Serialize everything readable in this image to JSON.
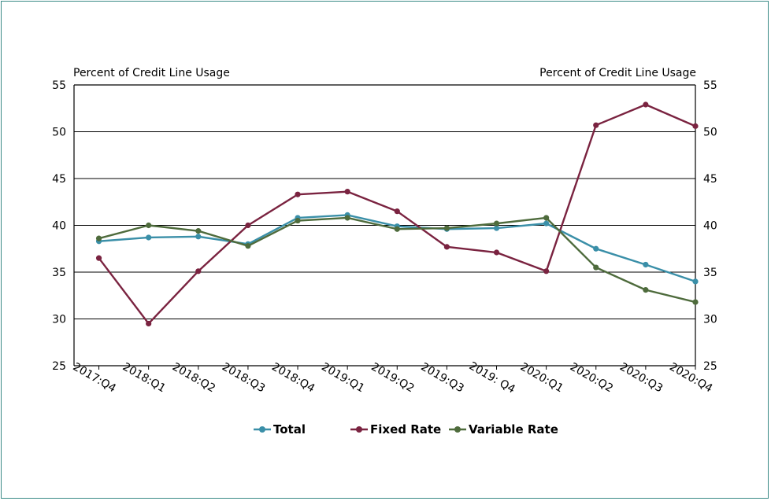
{
  "chart_data": {
    "type": "line",
    "ylabel_left": "Percent of Credit Line Usage",
    "ylabel_right": "Percent of Credit Line Usage",
    "ylim": [
      25,
      55
    ],
    "yticks": [
      25,
      30,
      35,
      40,
      45,
      50,
      55
    ],
    "grid": true,
    "legend_placement": "bottom",
    "categories": [
      "2017:Q4",
      "2018:Q1",
      "2018:Q2",
      "2018:Q3",
      "2018:Q4",
      "2019:Q1",
      "2019:Q2",
      "2019:Q3",
      "2019: Q4",
      "2020:Q1",
      "2020:Q2",
      "2020:Q3",
      "2020:Q4"
    ],
    "series": [
      {
        "name": "Total",
        "color": "#3a8fa8",
        "values": [
          38.3,
          38.7,
          38.8,
          38.0,
          40.8,
          41.1,
          39.9,
          39.6,
          39.7,
          40.2,
          37.5,
          35.8,
          34.0
        ]
      },
      {
        "name": "Fixed Rate",
        "color": "#7a2340",
        "values": [
          36.5,
          29.5,
          35.1,
          40.0,
          43.3,
          43.6,
          41.5,
          37.7,
          37.1,
          35.1,
          50.7,
          52.9,
          50.6
        ]
      },
      {
        "name": "Variable Rate",
        "color": "#4e6b3c",
        "values": [
          38.6,
          40.0,
          39.4,
          37.8,
          40.5,
          40.8,
          39.6,
          39.7,
          40.2,
          40.8,
          35.5,
          33.1,
          31.8
        ]
      }
    ]
  }
}
